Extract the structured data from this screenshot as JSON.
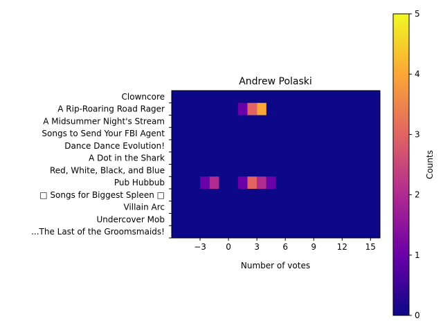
{
  "chart_data": {
    "type": "heatmap",
    "title": "Andrew Polaski",
    "xlabel": "Number of votes",
    "ylabel": "",
    "x_ticks": [
      -3,
      0,
      3,
      6,
      9,
      12,
      15
    ],
    "x_range": [
      -6,
      16
    ],
    "x_bin_width": 1,
    "categories": [
      "Clowncore",
      "A Rip-Roaring Road Rager",
      "A Midsummer Night's Stream",
      "Songs to Send Your FBI Agent",
      "Dance Dance Evolution!",
      "A Dot in the Shark",
      "Red, White, Black, and Blue",
      "Pub Hubbub",
      "□ Songs for Biggest Spleen □",
      "Villain Arc",
      "Undercover Mob",
      "...The Last of the Groomsmaids!"
    ],
    "cells": [
      {
        "category": "A Rip-Roaring Road Rager",
        "x_start": 1,
        "count": 1
      },
      {
        "category": "A Rip-Roaring Road Rager",
        "x_start": 2,
        "count": 3
      },
      {
        "category": "A Rip-Roaring Road Rager",
        "x_start": 3,
        "count": 4
      },
      {
        "category": "Pub Hubbub",
        "x_start": -3,
        "count": 1
      },
      {
        "category": "Pub Hubbub",
        "x_start": -2,
        "count": 2
      },
      {
        "category": "Pub Hubbub",
        "x_start": 1,
        "count": 1
      },
      {
        "category": "Pub Hubbub",
        "x_start": 2,
        "count": 3
      },
      {
        "category": "Pub Hubbub",
        "x_start": 3,
        "count": 2
      },
      {
        "category": "Pub Hubbub",
        "x_start": 4,
        "count": 1
      }
    ],
    "colorbar": {
      "label": "Counts",
      "range": [
        0,
        5
      ],
      "ticks": [
        0,
        1,
        2,
        3,
        4,
        5
      ],
      "colormap": "plasma",
      "stops": [
        "#0d0887",
        "#6a00a8",
        "#b12a90",
        "#e16462",
        "#fca636",
        "#f0f921"
      ]
    },
    "grid": false,
    "legend": "colorbar-right"
  }
}
